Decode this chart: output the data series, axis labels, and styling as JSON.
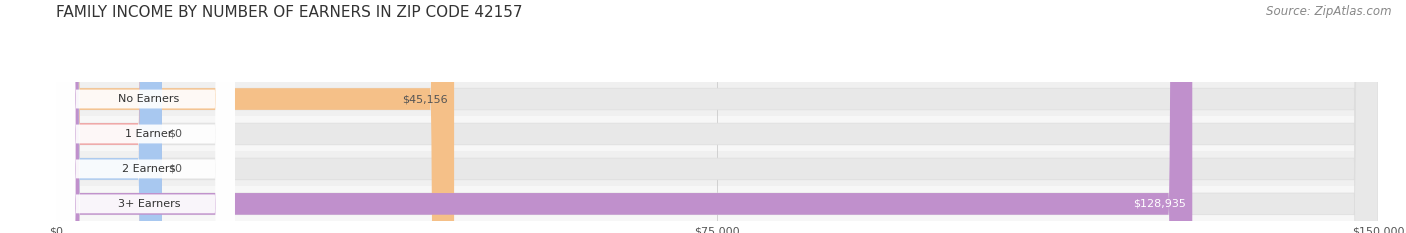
{
  "title": "FAMILY INCOME BY NUMBER OF EARNERS IN ZIP CODE 42157",
  "source": "Source: ZipAtlas.com",
  "categories": [
    "No Earners",
    "1 Earner",
    "2 Earners",
    "3+ Earners"
  ],
  "values": [
    45156,
    0,
    0,
    128935
  ],
  "bar_colors": [
    "#f5c088",
    "#f0a0a0",
    "#a8c8f0",
    "#c090cc"
  ],
  "bar_track_color": "#e8e8e8",
  "bar_border_color": [
    "#e8c070",
    "#e08080",
    "#80a8d8",
    "#a870b8"
  ],
  "bar_labels": [
    "$45,156",
    "$0",
    "$0",
    "$128,935"
  ],
  "label_text_color_inside": [
    "#555555",
    "#555555",
    "#555555",
    "#ffffff"
  ],
  "xmax": 150000,
  "xtick_labels": [
    "$0",
    "$75,000",
    "$150,000"
  ],
  "xtick_values": [
    0,
    75000,
    150000
  ],
  "background_color": "#ffffff",
  "plot_bg_color": "#f7f7f7",
  "title_fontsize": 11,
  "source_fontsize": 8.5,
  "bar_height": 0.62,
  "figsize": [
    14.06,
    2.33
  ],
  "small_bar_width": 12000
}
